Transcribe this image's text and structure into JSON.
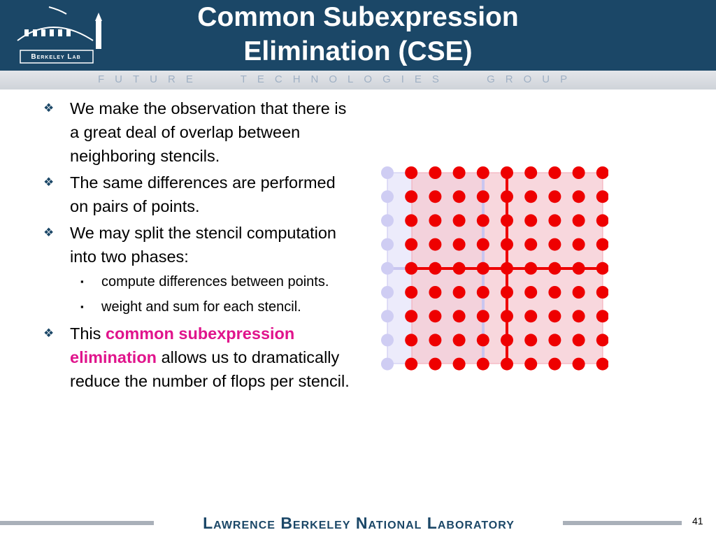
{
  "header": {
    "title": [
      "Common Subexpression",
      "Elimination (CSE)"
    ],
    "logo": "Berkeley Lab",
    "banner": "FUTURE TECHNOLOGIES GROUP"
  },
  "bullets": [
    {
      "text": "We make the observation that there is a great deal of overlap between neighboring stencils."
    },
    {
      "text": "The same differences are performed on pairs of points."
    },
    {
      "text": "We may split the stencil computation into two phases:",
      "sub": [
        "compute differences between points.",
        "weight and sum for each stencil."
      ]
    },
    {
      "parts": [
        "This ",
        "common subexpression elimination",
        " allows us to dramatically reduce the number of flops per stencil."
      ]
    }
  ],
  "footer": {
    "lab": "Lawrence Berkeley National Laboratory",
    "page": "41"
  }
}
